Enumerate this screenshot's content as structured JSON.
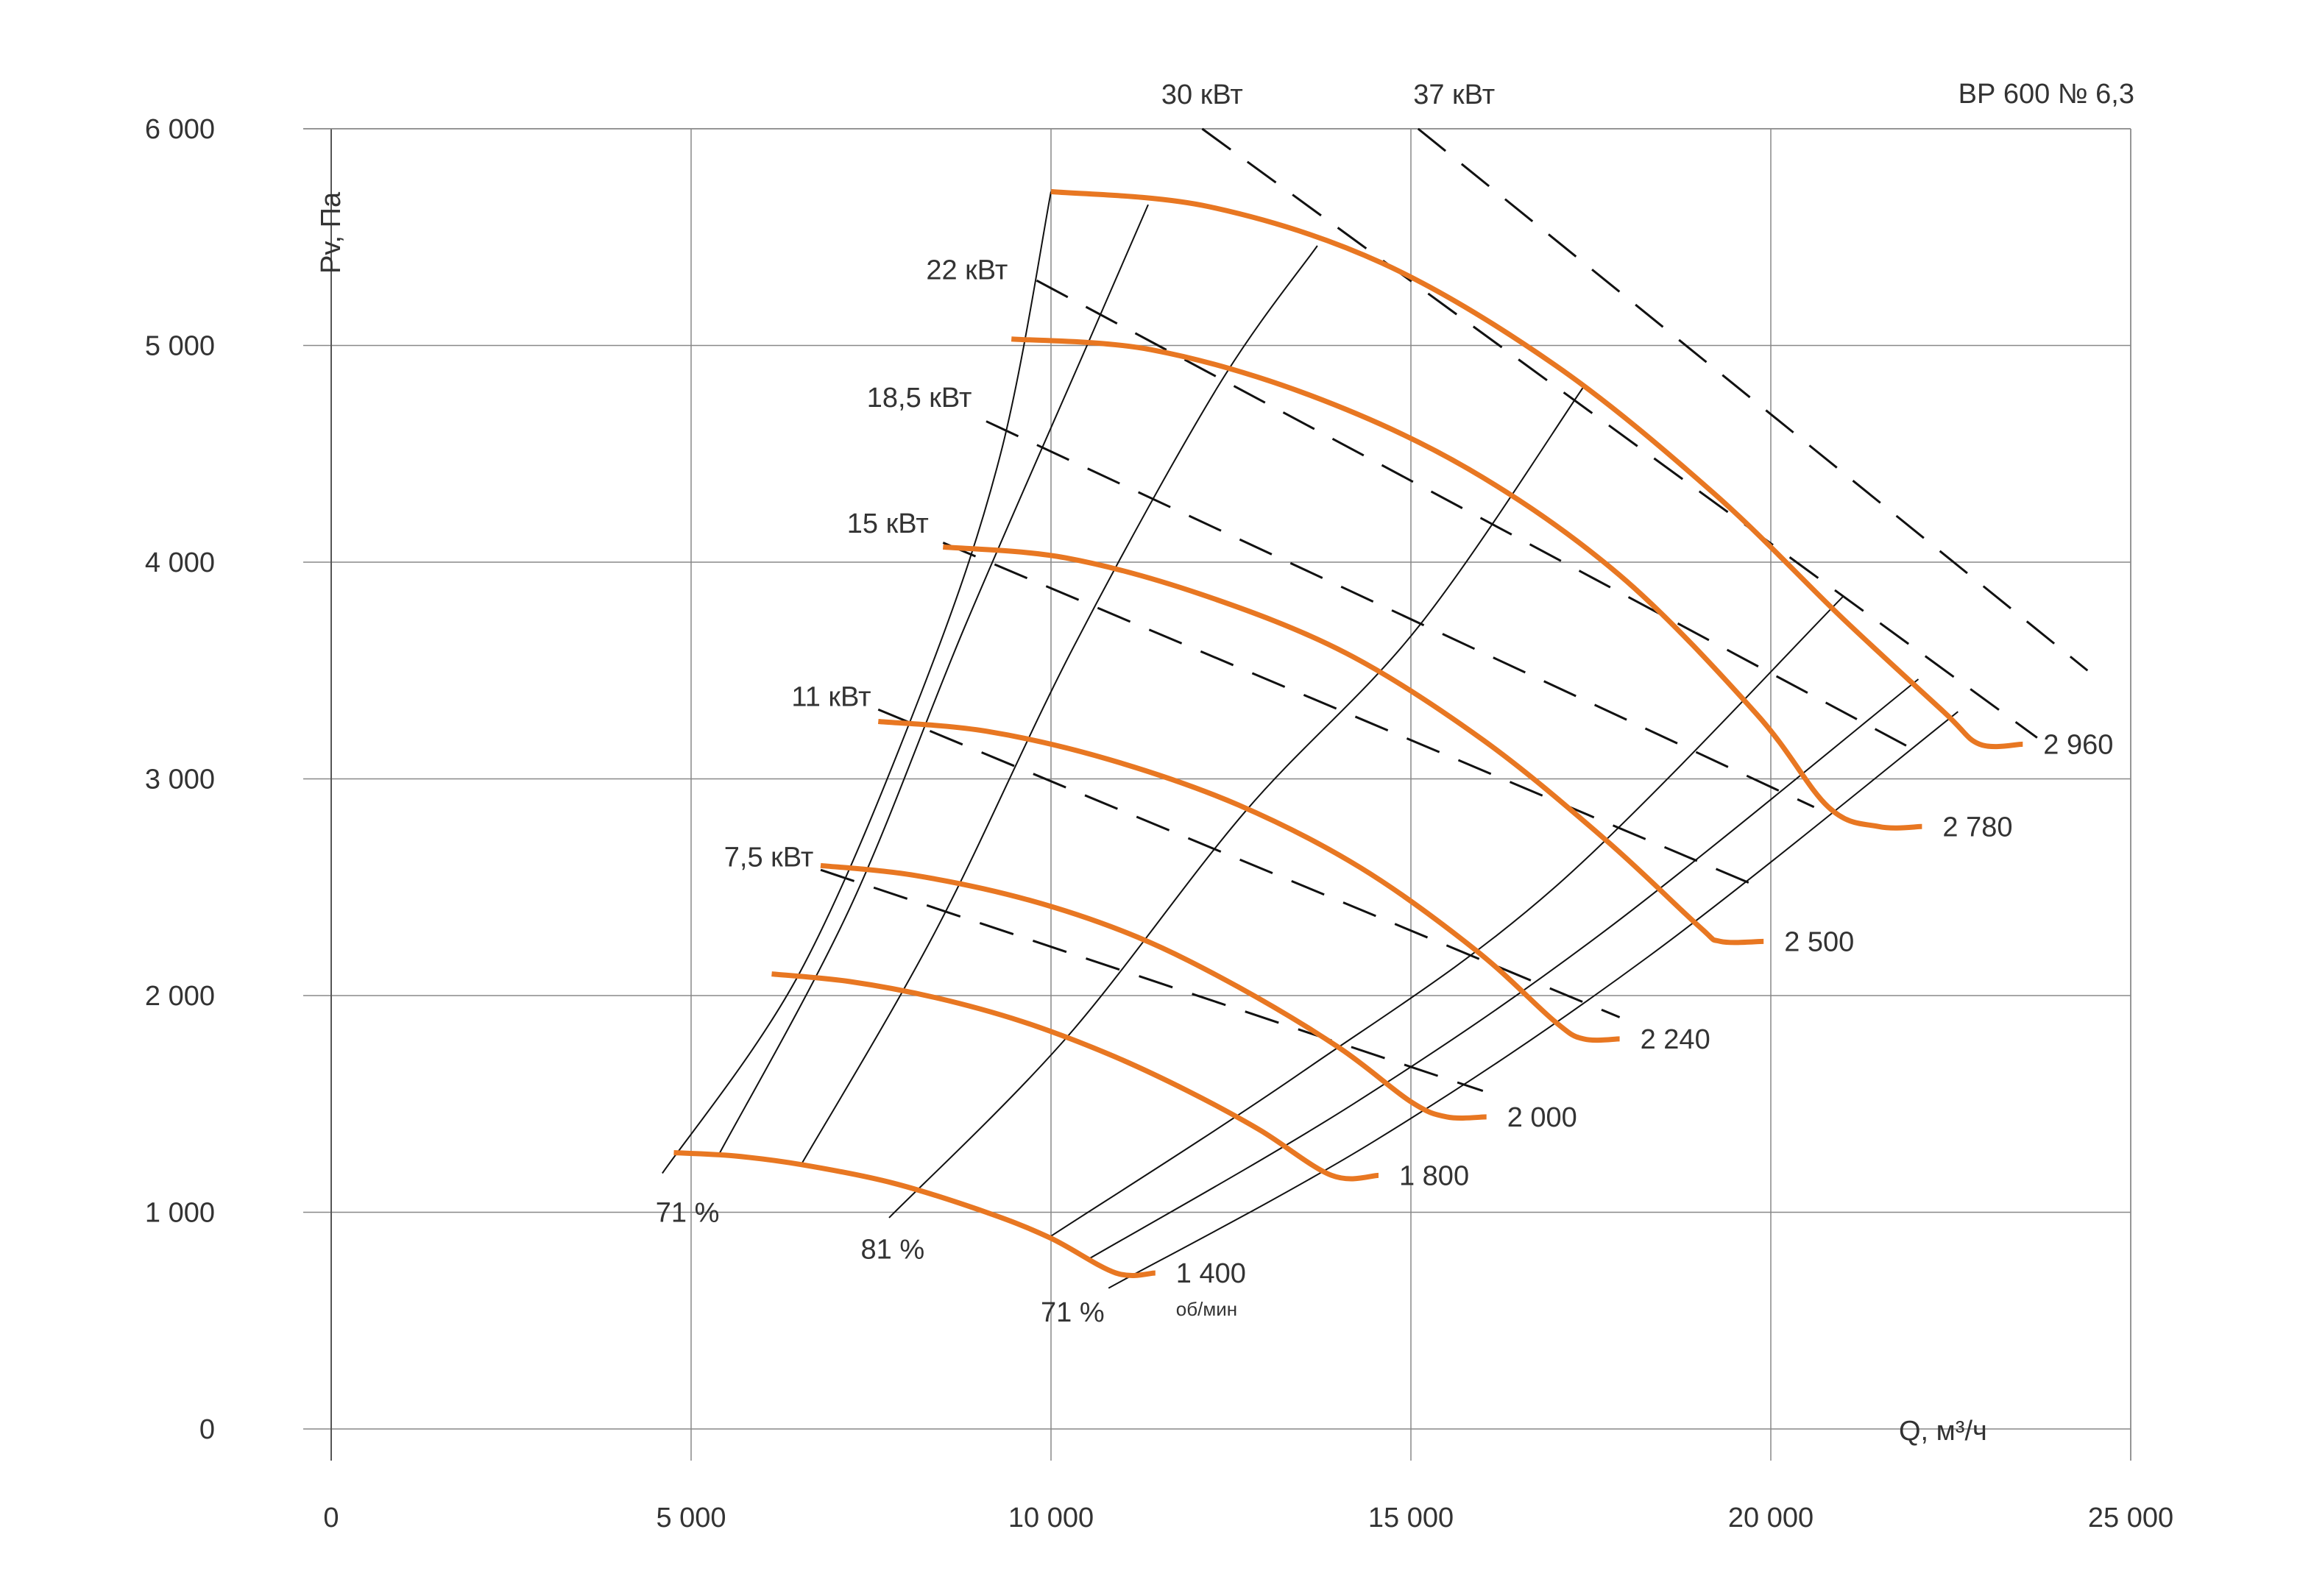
{
  "chart_data": {
    "type": "line",
    "title": "ВР 600 № 6,3",
    "xlabel": "Q, м³/ч",
    "ylabel": "Pv, Па",
    "xlim": [
      0,
      25000
    ],
    "ylim": [
      0,
      6000
    ],
    "x_ticks": [
      {
        "value": 0,
        "label": "0"
      },
      {
        "value": 5000,
        "label": "5 000"
      },
      {
        "value": 10000,
        "label": "10 000"
      },
      {
        "value": 15000,
        "label": "15 000"
      },
      {
        "value": 20000,
        "label": "20 000"
      },
      {
        "value": 25000,
        "label": "25 000"
      }
    ],
    "y_ticks": [
      {
        "value": 0,
        "label": "0"
      },
      {
        "value": 1000,
        "label": "1 000"
      },
      {
        "value": 2000,
        "label": "2 000"
      },
      {
        "value": 3000,
        "label": "3 000"
      },
      {
        "value": 4000,
        "label": "4 000"
      },
      {
        "value": 5000,
        "label": "5 000"
      },
      {
        "value": 6000,
        "label": "6 000"
      }
    ],
    "grid": true,
    "colors": {
      "speed": "#E87722",
      "grid": "#888888",
      "axis": "#555555",
      "text": "#333333"
    },
    "series": [
      {
        "label": "1 400",
        "unit": "об/мин",
        "points": [
          [
            4760,
            1275
          ],
          [
            5600,
            1260
          ],
          [
            6530,
            1220
          ],
          [
            7800,
            1135
          ],
          [
            9100,
            1000
          ],
          [
            10000,
            880
          ],
          [
            10900,
            720
          ],
          [
            11450,
            720
          ]
        ]
      },
      {
        "label": "1 800",
        "points": [
          [
            6120,
            2100
          ],
          [
            7200,
            2065
          ],
          [
            8400,
            1990
          ],
          [
            9600,
            1880
          ],
          [
            10800,
            1730
          ],
          [
            11900,
            1560
          ],
          [
            12900,
            1380
          ],
          [
            13900,
            1170
          ],
          [
            14550,
            1170
          ]
        ]
      },
      {
        "label": "2 000",
        "points": [
          [
            6800,
            2600
          ],
          [
            8100,
            2555
          ],
          [
            9700,
            2440
          ],
          [
            11200,
            2270
          ],
          [
            12600,
            2040
          ],
          [
            14000,
            1760
          ],
          [
            15000,
            1510
          ],
          [
            15500,
            1440
          ],
          [
            16050,
            1440
          ]
        ]
      },
      {
        "label": "2 240",
        "points": [
          [
            7600,
            3265
          ],
          [
            9100,
            3220
          ],
          [
            10800,
            3090
          ],
          [
            12600,
            2880
          ],
          [
            14300,
            2590
          ],
          [
            15900,
            2210
          ],
          [
            17000,
            1880
          ],
          [
            17400,
            1800
          ],
          [
            17900,
            1800
          ]
        ]
      },
      {
        "label": "2 500",
        "points": [
          [
            8500,
            4070
          ],
          [
            10200,
            4020
          ],
          [
            12100,
            3850
          ],
          [
            14100,
            3580
          ],
          [
            16000,
            3180
          ],
          [
            17700,
            2720
          ],
          [
            19000,
            2320
          ],
          [
            19300,
            2250
          ],
          [
            19900,
            2250
          ]
        ]
      },
      {
        "label": "2 780",
        "points": [
          [
            9450,
            5030
          ],
          [
            11400,
            4980
          ],
          [
            13600,
            4770
          ],
          [
            15800,
            4430
          ],
          [
            17900,
            3940
          ],
          [
            19800,
            3300
          ],
          [
            20800,
            2870
          ],
          [
            21500,
            2780
          ],
          [
            22100,
            2780
          ]
        ]
      },
      {
        "label": "2 960",
        "points": [
          [
            10000,
            5710
          ],
          [
            12200,
            5640
          ],
          [
            14600,
            5380
          ],
          [
            17000,
            4910
          ],
          [
            19200,
            4320
          ],
          [
            21000,
            3740
          ],
          [
            22400,
            3310
          ],
          [
            22900,
            3160
          ],
          [
            23500,
            3160
          ]
        ]
      }
    ],
    "power_lines": [
      {
        "label": "7,5 кВт",
        "start": [
          6800,
          2580
        ],
        "end": [
          16000,
          1560
        ]
      },
      {
        "label": "11 кВт",
        "start": [
          7600,
          3320
        ],
        "end": [
          17900,
          1900
        ]
      },
      {
        "label": "15 кВт",
        "start": [
          8500,
          4090
        ],
        "end": [
          19700,
          2520
        ]
      },
      {
        "label": "18,5 кВт",
        "start": [
          9100,
          4650
        ],
        "end": [
          20600,
          2870
        ]
      },
      {
        "label": "22 кВт",
        "start": [
          9800,
          5300
        ],
        "end": [
          21900,
          3150
        ]
      },
      {
        "label": "30 кВт",
        "start": [
          12100,
          6000
        ],
        "end": [
          23700,
          3190
        ]
      },
      {
        "label": "37 кВт",
        "start": [
          15100,
          6000
        ],
        "end": [
          24400,
          3500
        ]
      }
    ],
    "efficiency_lines": [
      {
        "label": "71 %",
        "points": [
          [
            4600,
            1180
          ],
          [
            6500,
            2100
          ],
          [
            8200,
            3400
          ],
          [
            9300,
            4500
          ],
          [
            10000,
            5710
          ]
        ]
      },
      {
        "points": [
          [
            5400,
            1275
          ],
          [
            7200,
            2400
          ],
          [
            8800,
            3700
          ],
          [
            10500,
            5000
          ],
          [
            11350,
            5650
          ]
        ]
      },
      {
        "points": [
          [
            6530,
            1220
          ],
          [
            8400,
            2300
          ],
          [
            10300,
            3600
          ],
          [
            12300,
            4800
          ],
          [
            13700,
            5460
          ]
        ]
      },
      {
        "label": "81 %",
        "points": [
          [
            7750,
            975
          ],
          [
            10200,
            1800
          ],
          [
            12700,
            2850
          ],
          [
            15100,
            3700
          ],
          [
            17400,
            4810
          ]
        ]
      },
      {
        "points": [
          [
            10000,
            890
          ],
          [
            13500,
            1650
          ],
          [
            17000,
            2500
          ],
          [
            21000,
            3840
          ]
        ]
      },
      {
        "points": [
          [
            10500,
            780
          ],
          [
            14200,
            1500
          ],
          [
            17700,
            2300
          ],
          [
            22050,
            3460
          ]
        ]
      },
      {
        "label": "71 %",
        "points": [
          [
            10800,
            650
          ],
          [
            14500,
            1330
          ],
          [
            18300,
            2180
          ],
          [
            22600,
            3310
          ]
        ]
      }
    ],
    "annotations": [
      {
        "text": "71 %",
        "x": 4950,
        "y": 1000
      },
      {
        "text": "81 %",
        "x": 7800,
        "y": 830
      },
      {
        "text": "71 %",
        "x": 10300,
        "y": 540
      },
      {
        "text": "30 кВт",
        "x": 12100,
        "y": 6160
      },
      {
        "text": "37 кВт",
        "x": 15600,
        "y": 6160
      },
      {
        "text": "22 кВт",
        "x": 9400,
        "y": 5350
      },
      {
        "text": "18,5 кВт",
        "x": 8900,
        "y": 4760
      },
      {
        "text": "15 кВт",
        "x": 8300,
        "y": 4180
      },
      {
        "text": "11 кВт",
        "x": 7500,
        "y": 3380
      },
      {
        "text": "7,5 кВт",
        "x": 6700,
        "y": 2640
      }
    ]
  }
}
